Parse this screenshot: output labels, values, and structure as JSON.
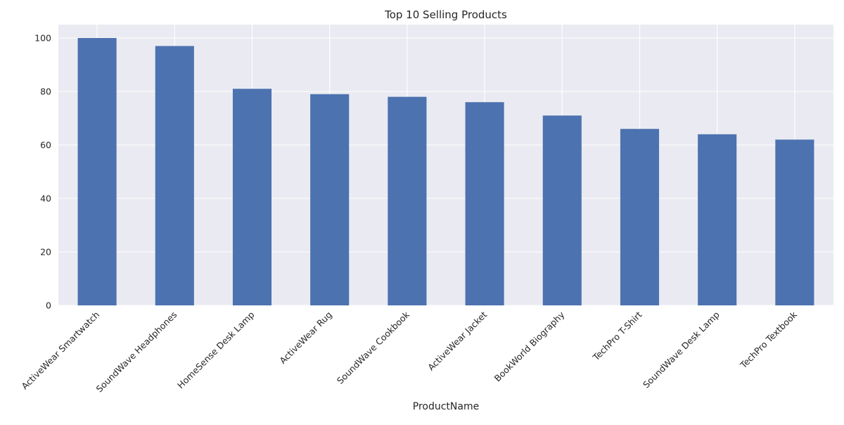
{
  "chart_data": {
    "type": "bar",
    "title": "Top 10 Selling Products",
    "xlabel": "ProductName",
    "ylabel": "",
    "categories": [
      "ActiveWear Smartwatch",
      "SoundWave Headphones",
      "HomeSense Desk Lamp",
      "ActiveWear Rug",
      "SoundWave Cookbook",
      "ActiveWear Jacket",
      "BookWorld Biography",
      "TechPro T-Shirt",
      "SoundWave Desk Lamp",
      "TechPro Textbook"
    ],
    "values": [
      100,
      97,
      81,
      79,
      78,
      76,
      71,
      66,
      64,
      62
    ],
    "ylim": [
      0,
      105
    ],
    "yticks": [
      0,
      20,
      40,
      60,
      80,
      100
    ],
    "grid": true,
    "legend": "none",
    "colors": {
      "bar": "#4c72b0",
      "plot_background": "#eaeaf2",
      "grid": "#ffffff",
      "text": "#262626"
    }
  }
}
